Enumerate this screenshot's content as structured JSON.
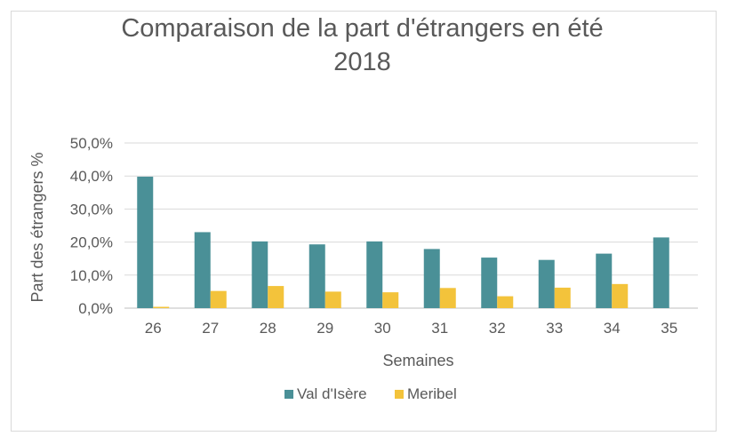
{
  "chart_data": {
    "type": "bar",
    "title": "Comparaison de la part d'étrangers en été\n2018",
    "xlabel": "Semaines",
    "ylabel": "Part des étrangers %",
    "categories": [
      "26",
      "27",
      "28",
      "29",
      "30",
      "31",
      "32",
      "33",
      "34",
      "35"
    ],
    "series": [
      {
        "name": "Val d'Isère",
        "color": "#4a9097",
        "values": [
          39.8,
          23.0,
          20.2,
          19.3,
          20.2,
          17.9,
          15.3,
          14.6,
          16.5,
          21.4
        ]
      },
      {
        "name": "Meribel",
        "color": "#f3c33b",
        "values": [
          0.4,
          5.2,
          6.7,
          5.0,
          4.8,
          6.1,
          3.6,
          6.2,
          7.3,
          0.0
        ]
      }
    ],
    "ylim": [
      0,
      50
    ],
    "yticks": [
      "0,0%",
      "10,0%",
      "20,0%",
      "30,0%",
      "40,0%",
      "50,0%"
    ],
    "grid": true,
    "legend_position": "bottom"
  }
}
